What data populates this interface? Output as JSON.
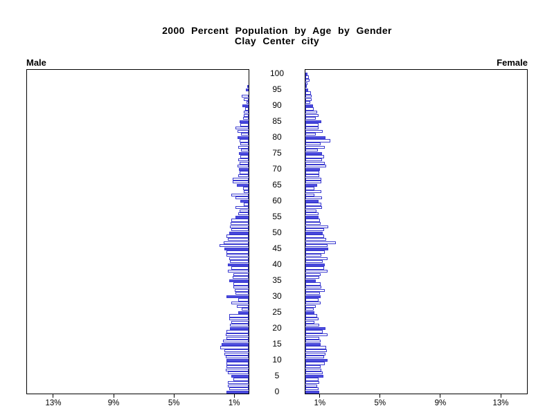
{
  "title": {
    "line1": "2000 Percent Population by Age by Gender",
    "line2": "Clay Center city"
  },
  "panels": {
    "male_label": "Male",
    "female_label": "Female"
  },
  "axis": {
    "age_tick_values": [
      0,
      5,
      10,
      15,
      20,
      25,
      30,
      35,
      40,
      45,
      50,
      55,
      60,
      65,
      70,
      75,
      80,
      85,
      90,
      95,
      100
    ],
    "percent_tick_values": [
      1,
      5,
      9,
      13
    ],
    "male_percent_tick_labels": [
      "13%",
      "9%",
      "5%",
      "1%"
    ],
    "female_percent_tick_labels": [
      "1%",
      "5%",
      "9%",
      "13%"
    ]
  },
  "colors": {
    "bar_fill": "#4d4de0",
    "bar_outline": "#3a3ad0",
    "axis": "#000000",
    "text": "#000000",
    "background": "#ffffff"
  },
  "chart_data": {
    "type": "bar",
    "variant": "population-pyramid",
    "title": "2000 Percent Population by Age by Gender",
    "subtitle": "Clay Center city",
    "orientation": "horizontal, male bars extend left, female bars extend right",
    "unit": "percent of total population",
    "age_bin": "single year of age, 0 through 100",
    "highlight_rule": "bars for ages divisible by 5 are solid blue; all other bars are white with blue outline",
    "x_ticks_percent": [
      1,
      5,
      9,
      13
    ],
    "xlim_each_side": [
      0,
      14.8
    ],
    "ages": [
      0,
      1,
      2,
      3,
      4,
      5,
      6,
      7,
      8,
      9,
      10,
      11,
      12,
      13,
      14,
      15,
      16,
      17,
      18,
      19,
      20,
      21,
      22,
      23,
      24,
      25,
      26,
      27,
      28,
      29,
      30,
      31,
      32,
      33,
      34,
      35,
      36,
      37,
      38,
      39,
      40,
      41,
      42,
      43,
      44,
      45,
      46,
      47,
      48,
      49,
      50,
      51,
      52,
      53,
      54,
      55,
      56,
      57,
      58,
      59,
      60,
      61,
      62,
      63,
      64,
      65,
      66,
      67,
      68,
      69,
      70,
      71,
      72,
      73,
      74,
      75,
      76,
      77,
      78,
      79,
      80,
      81,
      82,
      83,
      84,
      85,
      86,
      87,
      88,
      89,
      90,
      91,
      92,
      93,
      94,
      95,
      96,
      97,
      98,
      99,
      100
    ],
    "series": [
      {
        "name": "Male",
        "values": [
          1.45,
          1.3,
          1.38,
          1.38,
          1.0,
          1.15,
          1.38,
          1.53,
          1.45,
          1.45,
          1.45,
          1.53,
          1.6,
          1.6,
          1.87,
          1.8,
          1.68,
          1.45,
          1.53,
          1.45,
          1.22,
          1.22,
          1.15,
          1.3,
          1.3,
          0.7,
          0.46,
          0.77,
          1.15,
          0.7,
          1.45,
          0.85,
          0.9,
          1.0,
          1.0,
          1.3,
          1.07,
          1.0,
          1.38,
          1.15,
          1.38,
          1.22,
          1.3,
          1.45,
          1.45,
          1.6,
          1.95,
          1.65,
          1.4,
          1.45,
          1.3,
          1.15,
          1.22,
          1.2,
          1.15,
          0.85,
          0.7,
          0.6,
          0.85,
          0.3,
          0.55,
          0.85,
          1.15,
          0.3,
          0.38,
          0.77,
          1.07,
          1.07,
          0.7,
          0.6,
          0.65,
          0.75,
          0.6,
          0.7,
          0.55,
          0.65,
          0.5,
          0.7,
          0.55,
          0.6,
          0.75,
          0.5,
          0.75,
          0.85,
          0.55,
          0.6,
          0.35,
          0.32,
          0.3,
          0.25,
          0.42,
          0.15,
          0.3,
          0.45,
          0.0,
          0.2,
          0.1,
          0.0,
          0.0,
          0.0,
          0.0
        ]
      },
      {
        "name": "Female",
        "values": [
          0.92,
          0.85,
          0.77,
          0.92,
          0.85,
          1.2,
          1.15,
          1.07,
          1.0,
          1.3,
          1.45,
          1.22,
          1.35,
          1.42,
          1.38,
          1.0,
          1.0,
          0.92,
          1.45,
          1.15,
          1.35,
          0.92,
          0.6,
          0.85,
          0.77,
          0.6,
          0.54,
          0.7,
          1.0,
          0.85,
          1.0,
          0.95,
          1.3,
          1.07,
          1.0,
          0.7,
          0.92,
          1.0,
          1.45,
          1.22,
          1.3,
          1.15,
          1.45,
          1.07,
          1.3,
          1.53,
          1.45,
          2.04,
          1.38,
          1.26,
          1.15,
          1.22,
          1.53,
          1.0,
          0.95,
          0.85,
          0.89,
          0.74,
          1.1,
          1.05,
          0.89,
          1.1,
          0.6,
          1.07,
          0.58,
          0.77,
          1.07,
          1.07,
          0.92,
          0.92,
          0.95,
          1.4,
          1.27,
          1.12,
          1.22,
          1.1,
          0.81,
          1.3,
          1.03,
          1.64,
          1.35,
          0.7,
          1.15,
          0.85,
          0.87,
          1.07,
          0.69,
          0.87,
          0.77,
          0.57,
          0.5,
          0.31,
          0.41,
          0.43,
          0.38,
          0.18,
          0.08,
          0.12,
          0.28,
          0.23,
          0.15
        ]
      }
    ]
  }
}
